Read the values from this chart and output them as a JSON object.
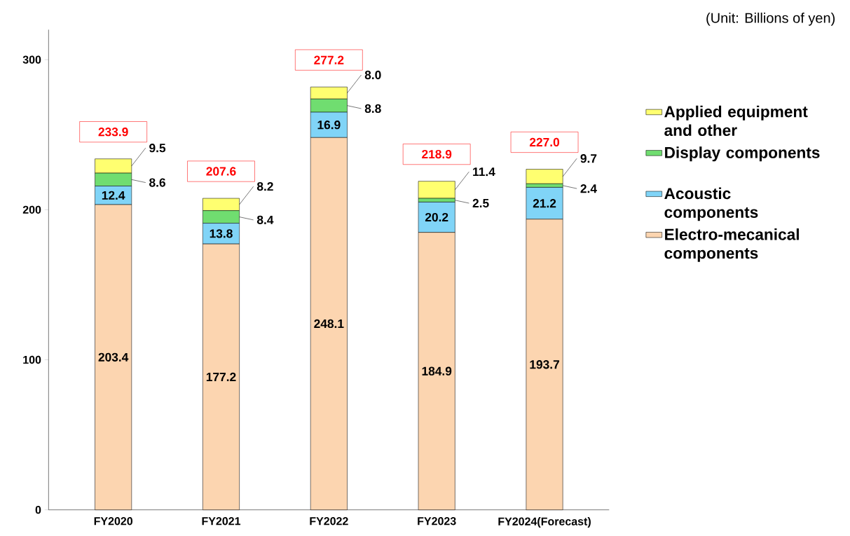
{
  "chart_data": {
    "type": "bar",
    "stacked": true,
    "categories": [
      "FY2020",
      "FY2021",
      "FY2022",
      "FY2023",
      "FY2024(Forecast)"
    ],
    "series": [
      {
        "name": "Electro-mecanical components",
        "color": "#fcd5b0",
        "values": [
          203.4,
          177.2,
          248.1,
          184.9,
          193.7
        ],
        "value_labels": [
          "203.4",
          "177.2",
          "248.1",
          "184.9",
          "193.7"
        ]
      },
      {
        "name": "Acoustic components",
        "color": "#80d4f7",
        "values": [
          12.4,
          13.8,
          16.9,
          20.2,
          21.2
        ],
        "value_labels": [
          "12.4",
          "13.8",
          "16.9",
          "20.2",
          "21.2"
        ]
      },
      {
        "name": "Display components",
        "color": "#70dd70",
        "values": [
          8.6,
          8.4,
          8.8,
          2.5,
          2.4
        ],
        "value_labels": [
          "8.6",
          "8.4",
          "8.8",
          "2.5",
          "2.4"
        ]
      },
      {
        "name": "Applied equipment and other",
        "color": "#ffff70",
        "values": [
          9.5,
          8.2,
          8.0,
          11.4,
          9.7
        ],
        "value_labels": [
          "9.5",
          "8.2",
          "8.0",
          "11.4",
          "9.7"
        ]
      }
    ],
    "ylim": [
      0,
      320
    ],
    "yticks": [
      0,
      100,
      200,
      300
    ],
    "grid": false,
    "legend": "right",
    "annotations": [
      "(Unit: Billions of yen)",
      "233.9",
      "207.6",
      "277.2",
      "218.9",
      "227.0"
    ]
  }
}
